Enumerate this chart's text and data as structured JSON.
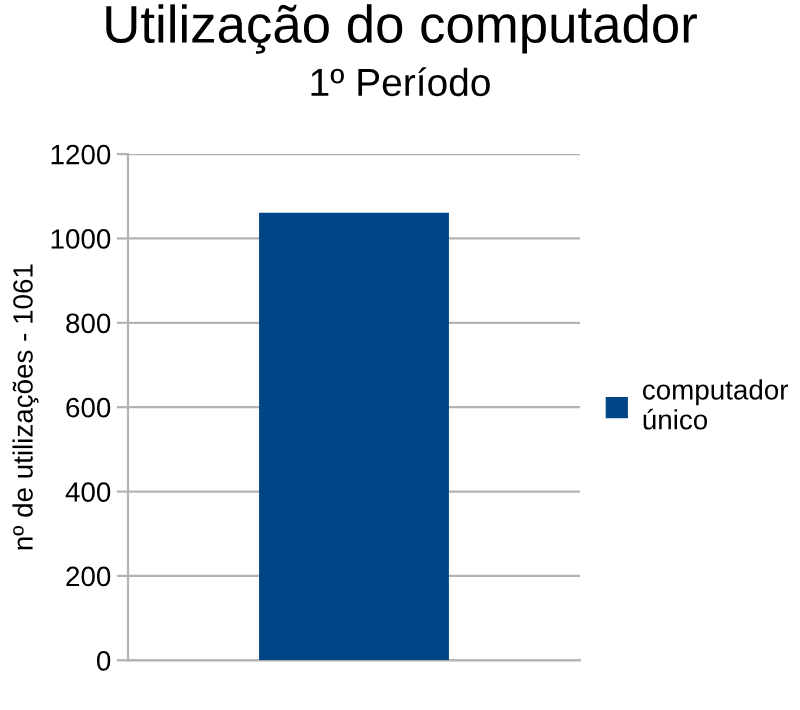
{
  "chart_data": {
    "type": "bar",
    "title": "Utilização do computador",
    "subtitle": "1º Período",
    "ylabel": "nº de utilizações - 1061",
    "categories": [
      null
    ],
    "series": [
      {
        "name": "computador\núnico",
        "color": "#004586",
        "values": [
          1061
        ]
      }
    ],
    "ylim": [
      0,
      1200
    ],
    "yticks": [
      0,
      200,
      400,
      600,
      800,
      1000,
      1200
    ],
    "grid": "y",
    "legend": "right"
  }
}
